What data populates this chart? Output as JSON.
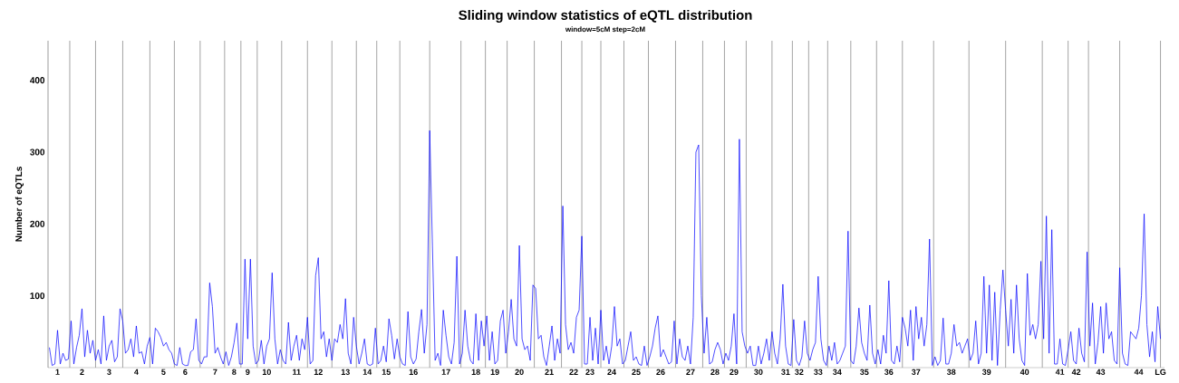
{
  "chart_data": {
    "type": "line",
    "title": "Sliding window statistics of eQTL distribution",
    "subtitle": "window=5cM step=2cM",
    "ylabel": "Number of eQTLs",
    "color": "#0000ff",
    "categories": [
      null,
      null,
      null,
      "1",
      null,
      null,
      null,
      null,
      null,
      null,
      null,
      null,
      "2",
      null,
      null,
      null,
      null,
      null,
      null,
      null,
      null,
      null,
      "3",
      null,
      null,
      null,
      null,
      null,
      null,
      null,
      null,
      null,
      "4",
      null,
      null,
      null,
      null,
      null,
      null,
      null,
      null,
      null,
      "5",
      null,
      null,
      null,
      null,
      null,
      null,
      null,
      "6",
      null,
      null,
      null,
      null,
      null,
      null,
      null,
      null,
      null,
      null,
      "7",
      null,
      null,
      null,
      null,
      null,
      null,
      "8",
      null,
      null,
      null,
      null,
      "9",
      null,
      null,
      null,
      null,
      null,
      null,
      "10",
      null,
      null,
      null,
      null,
      null,
      null,
      null,
      null,
      null,
      null,
      "11",
      null,
      null,
      null,
      null,
      null,
      null,
      null,
      "12",
      null,
      null,
      null,
      null,
      null,
      null,
      null,
      null,
      null,
      "13",
      null,
      null,
      null,
      null,
      null,
      null,
      null,
      "14",
      null,
      null,
      null,
      null,
      null,
      null,
      "15",
      null,
      null,
      null,
      null,
      null,
      null,
      null,
      null,
      null,
      "16",
      null,
      null,
      null,
      null,
      null,
      null,
      null,
      null,
      null,
      null,
      null,
      "17",
      null,
      null,
      null,
      null,
      null,
      null,
      null,
      null,
      null,
      null,
      "18",
      null,
      null,
      null,
      null,
      null,
      null,
      "19",
      null,
      null,
      null,
      null,
      null,
      null,
      null,
      null,
      "20",
      null,
      null,
      null,
      null,
      null,
      null,
      null,
      null,
      null,
      null,
      "21",
      null,
      null,
      null,
      null,
      null,
      null,
      null,
      null,
      "22",
      null,
      null,
      null,
      null,
      null,
      "23",
      null,
      null,
      null,
      null,
      null,
      null,
      null,
      "24",
      null,
      null,
      null,
      null,
      null,
      null,
      null,
      null,
      "25",
      null,
      null,
      null,
      null,
      null,
      null,
      null,
      null,
      "26",
      null,
      null,
      null,
      null,
      null,
      null,
      null,
      null,
      null,
      null,
      "27",
      null,
      null,
      null,
      null,
      null,
      null,
      null,
      null,
      "28",
      null,
      null,
      null,
      null,
      null,
      null,
      "29",
      null,
      null,
      null,
      null,
      null,
      null,
      null,
      null,
      "30",
      null,
      null,
      null,
      null,
      null,
      null,
      null,
      null,
      null,
      "31",
      null,
      null,
      null,
      null,
      "32",
      null,
      null,
      null,
      null,
      null,
      null,
      "33",
      null,
      null,
      null,
      null,
      null,
      null,
      "34",
      null,
      null,
      null,
      null,
      null,
      null,
      null,
      null,
      null,
      "35",
      null,
      null,
      null,
      null,
      null,
      null,
      null,
      null,
      "36",
      null,
      null,
      null,
      null,
      null,
      null,
      null,
      null,
      null,
      "37",
      null,
      null,
      null,
      null,
      null,
      null,
      null,
      null,
      null,
      null,
      null,
      null,
      "38",
      null,
      null,
      null,
      null,
      null,
      null,
      null,
      null,
      null,
      null,
      null,
      null,
      "39",
      null,
      null,
      null,
      null,
      null,
      null,
      null,
      null,
      null,
      null,
      null,
      null,
      null,
      "40",
      null,
      null,
      null,
      null,
      null,
      null,
      null,
      null,
      null,
      null,
      null,
      null,
      "41",
      null,
      null,
      null,
      null,
      null,
      "42",
      null,
      null,
      null,
      null,
      null,
      null,
      null,
      null,
      "43",
      null,
      null,
      null,
      null,
      null,
      null,
      null,
      null,
      null,
      null,
      null,
      null,
      null,
      "44",
      null,
      null,
      null,
      null,
      null,
      null,
      null,
      "LG"
    ],
    "values": [
      28,
      3,
      5,
      52,
      5,
      20,
      10,
      12,
      65,
      5,
      28,
      45,
      82,
      15,
      52,
      20,
      38,
      10,
      25,
      5,
      72,
      10,
      30,
      38,
      8,
      15,
      82,
      65,
      20,
      25,
      40,
      15,
      58,
      20,
      22,
      5,
      30,
      42,
      5,
      55,
      50,
      42,
      30,
      35,
      25,
      20,
      5,
      3,
      28,
      5,
      3,
      3,
      22,
      25,
      68,
      10,
      5,
      15,
      15,
      118,
      85,
      20,
      28,
      15,
      5,
      22,
      3,
      15,
      35,
      62,
      5,
      5,
      151,
      40,
      151,
      30,
      5,
      10,
      38,
      5,
      30,
      40,
      132,
      40,
      5,
      25,
      10,
      5,
      63,
      10,
      30,
      45,
      10,
      40,
      25,
      70,
      5,
      10,
      128,
      153,
      40,
      50,
      15,
      40,
      10,
      40,
      35,
      60,
      40,
      96,
      20,
      5,
      70,
      30,
      5,
      20,
      40,
      5,
      3,
      5,
      55,
      5,
      10,
      30,
      8,
      68,
      45,
      12,
      40,
      15,
      5,
      3,
      78,
      15,
      5,
      12,
      50,
      81,
      20,
      60,
      330,
      170,
      10,
      20,
      3,
      80,
      45,
      15,
      5,
      35,
      155,
      5,
      20,
      80,
      30,
      10,
      5,
      75,
      10,
      65,
      30,
      72,
      10,
      50,
      5,
      10,
      65,
      80,
      20,
      50,
      95,
      40,
      30,
      170,
      40,
      25,
      30,
      10,
      115,
      110,
      40,
      45,
      15,
      3,
      30,
      58,
      10,
      40,
      20,
      225,
      60,
      25,
      35,
      20,
      70,
      80,
      183,
      5,
      5,
      70,
      10,
      55,
      5,
      80,
      10,
      30,
      5,
      30,
      85,
      30,
      40,
      5,
      10,
      30,
      50,
      10,
      15,
      5,
      3,
      30,
      3,
      15,
      30,
      55,
      72,
      15,
      25,
      15,
      5,
      8,
      65,
      5,
      40,
      15,
      10,
      30,
      5,
      70,
      300,
      310,
      100,
      20,
      70,
      5,
      8,
      25,
      35,
      25,
      5,
      20,
      10,
      30,
      75,
      5,
      318,
      50,
      30,
      20,
      30,
      3,
      3,
      30,
      5,
      20,
      40,
      10,
      50,
      20,
      5,
      40,
      116,
      30,
      5,
      3,
      67,
      10,
      3,
      15,
      65,
      20,
      10,
      25,
      35,
      127,
      40,
      10,
      3,
      30,
      10,
      35,
      5,
      10,
      20,
      30,
      190,
      10,
      5,
      30,
      83,
      35,
      20,
      10,
      87,
      20,
      5,
      25,
      5,
      45,
      20,
      121,
      10,
      5,
      30,
      8,
      70,
      55,
      30,
      80,
      10,
      85,
      40,
      70,
      30,
      60,
      179,
      3,
      15,
      3,
      10,
      69,
      5,
      5,
      20,
      60,
      30,
      35,
      20,
      30,
      40,
      10,
      20,
      65,
      5,
      20,
      127,
      20,
      115,
      10,
      105,
      3,
      80,
      136,
      80,
      30,
      95,
      20,
      115,
      40,
      10,
      3,
      131,
      45,
      60,
      40,
      60,
      148,
      40,
      211,
      20,
      192,
      5,
      5,
      40,
      5,
      3,
      25,
      50,
      10,
      5,
      55,
      20,
      8,
      161,
      30,
      90,
      5,
      35,
      85,
      20,
      90,
      40,
      50,
      10,
      5,
      139,
      20,
      5,
      3,
      50,
      45,
      40,
      55,
      100,
      214,
      60,
      15,
      50,
      8,
      85,
      40
    ],
    "ylim": [
      0,
      455
    ],
    "yticks": [
      100,
      200,
      300,
      400
    ]
  }
}
